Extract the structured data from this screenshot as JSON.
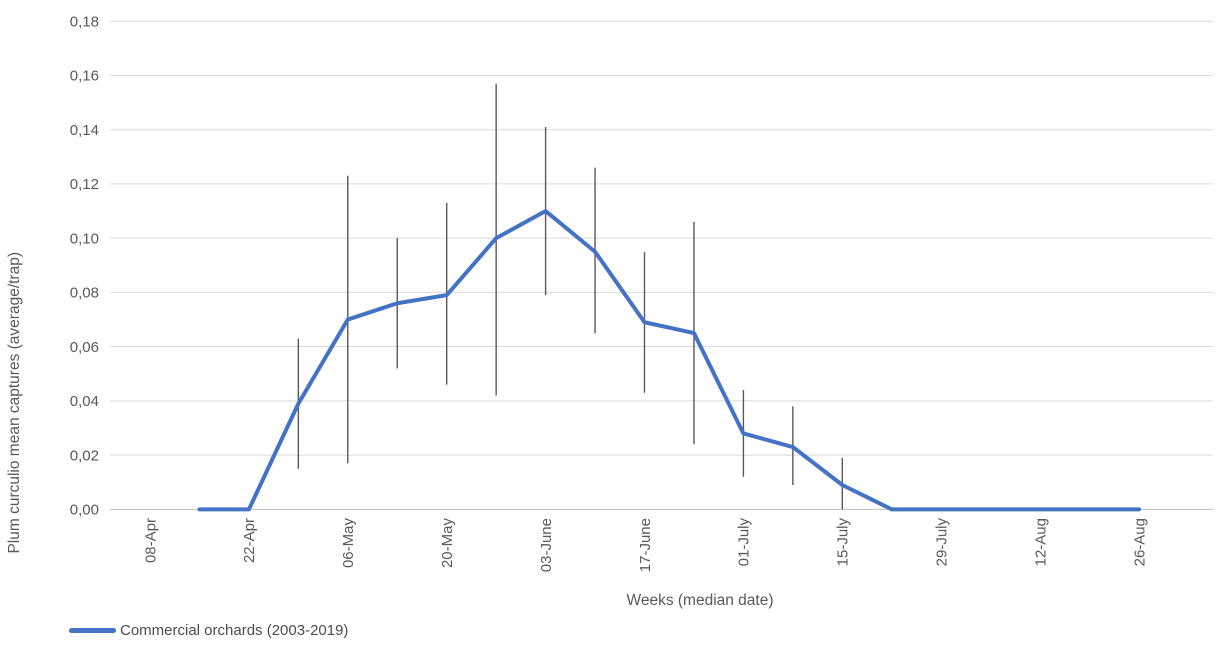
{
  "chart_data": {
    "type": "line",
    "title": "",
    "xlabel": "Weeks (median date)",
    "ylabel": "Plum curculio mean captures (average/trap)",
    "ylim": [
      0,
      0.18
    ],
    "ytick_step": 0.02,
    "ytick_labels": [
      "0,00",
      "0,02",
      "0,04",
      "0,06",
      "0,08",
      "0,10",
      "0,12",
      "0,14",
      "0,16",
      "0,18"
    ],
    "decimal_separator": "comma",
    "grid": "horizontal",
    "legend_position": "bottom-left",
    "xtick_labels": [
      "08-Apr",
      "22-Apr",
      "06-May",
      "20-May",
      "03-June",
      "17-June",
      "01-July",
      "15-July",
      "29-July",
      "12-Aug",
      "26-Aug"
    ],
    "xtick_labeled_every": 2,
    "colors": {
      "line": "#4472C4",
      "gridline": "#D9D9D9",
      "axis_line": "#BFBFBF",
      "error_bar": "#595959",
      "tick_text": "#595959",
      "title_text": "#595959"
    },
    "series": [
      {
        "name": "Commercial orchards (2003-2019)",
        "color": "#4472C4",
        "points": [
          {
            "label": "08-Apr",
            "value": null
          },
          {
            "label": "15-Apr",
            "value": 0.0
          },
          {
            "label": "22-Apr",
            "value": 0.0
          },
          {
            "label": "29-Apr",
            "value": 0.039,
            "err_low": 0.015,
            "err_high": 0.063
          },
          {
            "label": "06-May",
            "value": 0.07,
            "err_low": 0.017,
            "err_high": 0.123
          },
          {
            "label": "13-May",
            "value": 0.076,
            "err_low": 0.052,
            "err_high": 0.1
          },
          {
            "label": "20-May",
            "value": 0.079,
            "err_low": 0.046,
            "err_high": 0.113
          },
          {
            "label": "27-May",
            "value": 0.1,
            "err_low": 0.042,
            "err_high": 0.157
          },
          {
            "label": "03-June",
            "value": 0.11,
            "err_low": 0.079,
            "err_high": 0.141
          },
          {
            "label": "10-June",
            "value": 0.095,
            "err_low": 0.065,
            "err_high": 0.126
          },
          {
            "label": "17-June",
            "value": 0.069,
            "err_low": 0.043,
            "err_high": 0.095
          },
          {
            "label": "24-June",
            "value": 0.065,
            "err_low": 0.024,
            "err_high": 0.106
          },
          {
            "label": "01-July",
            "value": 0.028,
            "err_low": 0.012,
            "err_high": 0.044
          },
          {
            "label": "08-July",
            "value": 0.023,
            "err_low": 0.009,
            "err_high": 0.038
          },
          {
            "label": "15-July",
            "value": 0.009,
            "err_low": 0.0,
            "err_high": 0.019
          },
          {
            "label": "22-July",
            "value": 0.0
          },
          {
            "label": "29-July",
            "value": 0.0
          },
          {
            "label": "05-Aug",
            "value": 0.0
          },
          {
            "label": "12-Aug",
            "value": 0.0
          },
          {
            "label": "19-Aug",
            "value": 0.0
          },
          {
            "label": "26-Aug",
            "value": 0.0
          }
        ]
      }
    ]
  }
}
